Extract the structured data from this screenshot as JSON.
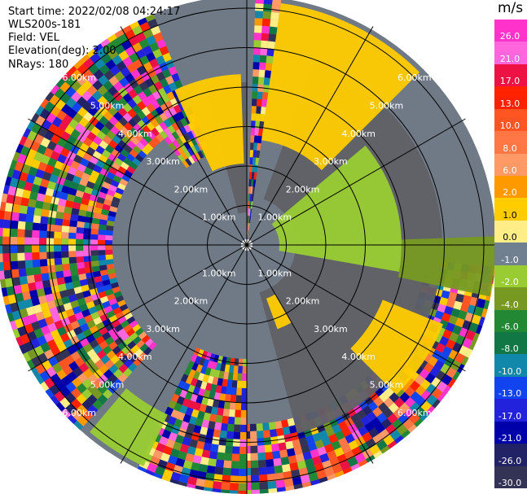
{
  "header": {
    "start_time": "Start time: 2022/02/08 04:24:17",
    "instrument": "WLS200s-181",
    "field": "Field: VEL",
    "elevation": "Elevation(deg): 2.00",
    "nrays": "NRays: 180"
  },
  "range_ring_labels": [
    "1.00km",
    "2.00km",
    "3.00km",
    "4.00km",
    "5.00km",
    "6.00km"
  ],
  "colorbar": {
    "unit": "m/s",
    "ticks": [
      "26.0",
      "21.0",
      "17.0",
      "13.0",
      "10.0",
      "8.0",
      "6.0",
      "2.0",
      "1.0",
      "0.0",
      "-1.0",
      "-2.0",
      "-4.0",
      "-6.0",
      "-8.0",
      "-10.0",
      "-13.0",
      "-17.0",
      "-21.0",
      "-26.0",
      "-30.0"
    ],
    "colors": [
      "#ff33cc",
      "#ff66dd",
      "#ee1144",
      "#ff2200",
      "#ff5522",
      "#ff7744",
      "#ff9966",
      "#ff9900",
      "#ffcc00",
      "#ffee88",
      "#708090",
      "#99cc33",
      "#779922",
      "#228833",
      "#117744",
      "#1188aa",
      "#1144ee",
      "#2222dd",
      "#0000aa",
      "#222266",
      "#333355"
    ],
    "no_data_color": "#707a86",
    "near_zero_color": "#5f6166"
  }
}
